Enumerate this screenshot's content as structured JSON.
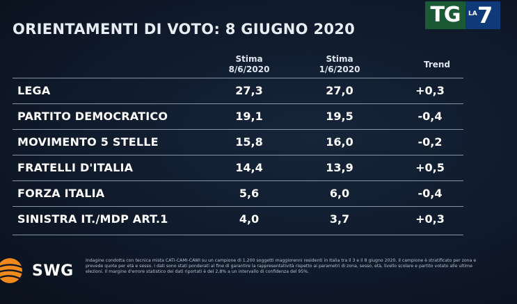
{
  "title": "ORIENTAMENTI DI VOTO: 8 GIUGNO 2020",
  "brand": {
    "tg": "TG",
    "la": "LA",
    "seven": "7",
    "swg": "SWG",
    "colors": {
      "tg": "#1c5a35",
      "la7": "#0e3a7a",
      "swg_orange": "#f08a1c"
    }
  },
  "columns": {
    "c1_line1": "Stima",
    "c1_line2": "8/6/2020",
    "c2_line1": "Stima",
    "c2_line2": "1/6/2020",
    "c3": "Trend"
  },
  "rows": [
    {
      "party": "LEGA",
      "v1": "27,3",
      "v2": "27,0",
      "trend": "+0,3"
    },
    {
      "party": "PARTITO DEMOCRATICO",
      "v1": "19,1",
      "v2": "19,5",
      "trend": "-0,4"
    },
    {
      "party": "MOVIMENTO 5 STELLE",
      "v1": "15,8",
      "v2": "16,0",
      "trend": "-0,2"
    },
    {
      "party": "FRATELLI D'ITALIA",
      "v1": "14,4",
      "v2": "13,9",
      "trend": "+0,5"
    },
    {
      "party": "FORZA ITALIA",
      "v1": "5,6",
      "v2": "6,0",
      "trend": "-0,4"
    },
    {
      "party": "SINISTRA IT./MDP ART.1",
      "v1": "4,0",
      "v2": "3,7",
      "trend": "+0,3"
    }
  ],
  "footnote": "Indagine condotta con tecnica mista CATI-CAMI-CAWI su un campione di 1.200 soggetti maggiorenni residenti in Italia tra il 3 e il 8 giugno 2020. Il campione è stratificato per zona e prevede quote per età e sesso. I dati sono stati ponderati al fine di garantire la rappresentatività rispetto ai parametri di zona, sesso, età, livello scolare e partito votato alle ultime elezioni. Il margine d'errore statistico dei dati riportati è del 2,8% a un intervallo di confidenza del 95%."
}
